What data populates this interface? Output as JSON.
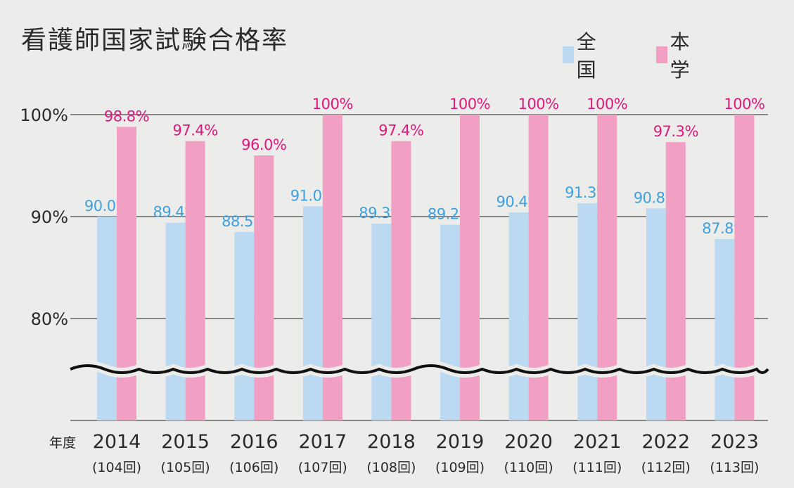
{
  "chart_data": {
    "type": "bar",
    "title": "看護師国家試験合格率",
    "x_prefix_label": "年度",
    "categories": [
      "2014",
      "2015",
      "2016",
      "2017",
      "2018",
      "2019",
      "2020",
      "2021",
      "2022",
      "2023"
    ],
    "sublabels": [
      "(104回)",
      "(105回)",
      "(106回)",
      "(107回)",
      "(108回)",
      "(109回)",
      "(110回)",
      "(111回)",
      "(112回)",
      "(113回)"
    ],
    "series": [
      {
        "name": "全国",
        "color": "#bcd9f2",
        "label_color": "#3ea0dd",
        "values": [
          90.0,
          89.4,
          88.5,
          91.0,
          89.3,
          89.2,
          90.4,
          91.3,
          90.8,
          87.8
        ],
        "labels": [
          "90.0%",
          "89.4%",
          "88.5%",
          "91.0%",
          "89.3%",
          "89.2%",
          "90.4%",
          "91.3%",
          "90.8%",
          "87.8%"
        ]
      },
      {
        "name": "本学",
        "color": "#f29fc4",
        "label_color": "#e0197d",
        "values": [
          98.8,
          97.4,
          96.0,
          100,
          97.4,
          100,
          100,
          100,
          97.3,
          100
        ],
        "labels": [
          "98.8%",
          "97.4%",
          "96.0%",
          "100%",
          "97.4%",
          "100%",
          "100%",
          "100%",
          "97.3%",
          "100%"
        ]
      }
    ],
    "y_ticks": [
      {
        "value": 100,
        "label": "100%"
      },
      {
        "value": 90,
        "label": "90%"
      },
      {
        "value": 80,
        "label": "80%"
      }
    ],
    "ylim": [
      70,
      100
    ],
    "axis_break": true,
    "grid": true,
    "legend_position": "top-right"
  }
}
